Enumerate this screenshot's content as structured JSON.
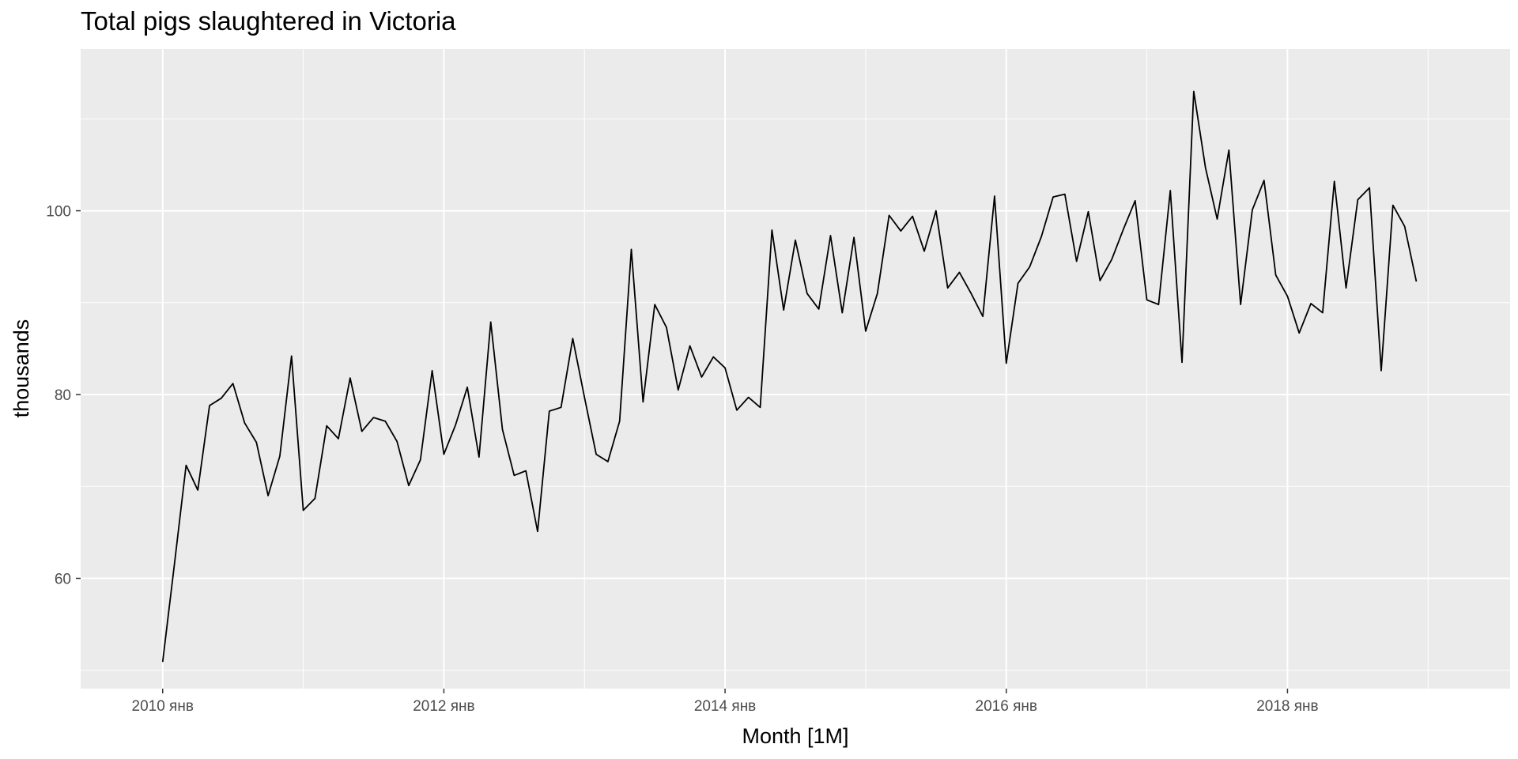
{
  "chart_data": {
    "type": "line",
    "title": "Total pigs slaughtered in Victoria",
    "xlabel": "Month [1M]",
    "ylabel": "thousands",
    "x_start": "2010-01",
    "x_ticks": [
      {
        "label": "2010 янв",
        "month": "2010-01"
      },
      {
        "label": "2012 янв",
        "month": "2012-01"
      },
      {
        "label": "2014 янв",
        "month": "2014-01"
      },
      {
        "label": "2016 янв",
        "month": "2016-01"
      },
      {
        "label": "2018 янв",
        "month": "2018-01"
      }
    ],
    "y_ticks": [
      60,
      80,
      100
    ],
    "xlim": [
      "2009-06",
      "2019-08"
    ],
    "ylim": [
      48.0,
      117.6
    ],
    "grid": true,
    "legend": "none",
    "colors": {
      "panel": "#ebebeb",
      "grid": "#ffffff",
      "line": "#000000"
    },
    "series": [
      {
        "values": [
          50.9,
          61.5,
          72.3,
          69.6,
          78.8,
          79.6,
          81.2,
          76.9,
          74.8,
          69.0,
          73.3,
          84.2,
          67.4,
          68.7,
          76.6,
          75.2,
          81.8,
          76.0,
          77.5,
          77.1,
          74.9,
          70.1,
          72.9,
          82.6,
          73.5,
          76.7,
          80.8,
          73.2,
          87.9,
          76.2,
          71.2,
          71.7,
          65.1,
          78.2,
          78.6,
          86.1,
          79.7,
          73.5,
          72.7,
          77.1,
          95.8,
          79.2,
          89.8,
          87.3,
          80.5,
          85.3,
          81.9,
          84.1,
          82.9,
          78.3,
          79.7,
          78.6,
          97.9,
          89.2,
          96.8,
          91.0,
          89.3,
          97.3,
          88.9,
          97.1,
          86.9,
          91.0,
          99.5,
          97.8,
          99.4,
          95.6,
          100.0,
          91.6,
          93.3,
          91.0,
          88.5,
          101.6,
          83.4,
          92.1,
          93.9,
          97.2,
          101.5,
          101.8,
          94.5,
          99.9,
          92.4,
          94.7,
          98.0,
          101.1,
          90.3,
          89.8,
          102.2,
          83.5,
          113.0,
          104.7,
          99.1,
          106.6,
          89.8,
          100.1,
          103.3,
          93.0,
          90.7,
          86.7,
          89.9,
          88.9,
          103.2,
          91.6,
          101.2,
          102.5,
          82.6,
          100.6,
          98.3,
          92.3
        ]
      }
    ]
  }
}
